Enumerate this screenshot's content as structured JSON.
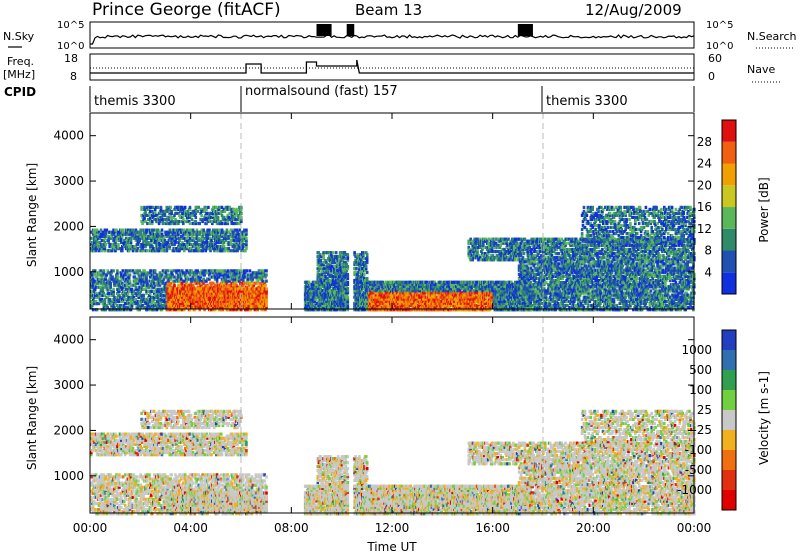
{
  "header": {
    "station": "Prince George (fitACF)",
    "beam": "Beam 13",
    "date": "12/Aug/2009"
  },
  "noise_panel": {
    "left_label": "N.Sky",
    "right_label": "N.Search",
    "tick_top": "10^5",
    "tick_bottom": "10^0"
  },
  "freq_panel": {
    "left_label_1": "Freq.",
    "left_label_2": "[MHz]",
    "left_tick_top": "18",
    "left_tick_bottom": "8",
    "right_label": "Nave",
    "right_tick_top": "60",
    "right_tick_bottom": "0"
  },
  "cpid": {
    "label": "CPID",
    "segments": [
      {
        "text": "themis 3300",
        "start_h": 0,
        "end_h": 6
      },
      {
        "text": "normalsound (fast) 157",
        "start_h": 6,
        "end_h": 18
      },
      {
        "text": "themis 3300",
        "start_h": 18,
        "end_h": 24
      }
    ]
  },
  "power_panel": {
    "ylabel": "Slant Range [km]",
    "yticks": [
      "1000",
      "2000",
      "3000",
      "4000"
    ],
    "colorbar_label": "Power [dB]",
    "colorbar_ticks": [
      "4",
      "8",
      "12",
      "16",
      "20",
      "24",
      "28"
    ],
    "colors": [
      "#1030e0",
      "#2050b0",
      "#2f8a6a",
      "#5ab85a",
      "#c8c820",
      "#f0a000",
      "#f06010",
      "#e01010"
    ]
  },
  "velocity_panel": {
    "ylabel": "Slant Range [km]",
    "yticks": [
      "1000",
      "2000",
      "3000",
      "4000"
    ],
    "colorbar_label": "Velocity [m s-1]",
    "colorbar_ticks": [
      "1000",
      "500",
      "100",
      "25",
      "-25",
      "-100",
      "-500",
      "-1000"
    ],
    "colors": [
      "#2040c0",
      "#3070b0",
      "#30a050",
      "#70d040",
      "#c8c8c8",
      "#f0b020",
      "#f07010",
      "#e03010",
      "#e00000"
    ]
  },
  "xaxis": {
    "label": "Time UT",
    "ticks": [
      "00:00",
      "04:00",
      "08:00",
      "12:00",
      "16:00",
      "20:00",
      "00:00"
    ]
  },
  "chart_data": {
    "type": "heatmap",
    "title": "Prince George (fitACF) Beam 13 12/Aug/2009",
    "xlabel": "Time UT",
    "ylabel": "Slant Range [km]",
    "xlim_hours": [
      0,
      24
    ],
    "ylim_km": [
      180,
      4500
    ],
    "scatter_bands": [
      {
        "t0": 0.0,
        "t1": 6.2,
        "r0": 1500,
        "r1": 2000,
        "density": 0.55
      },
      {
        "t0": 2.0,
        "t1": 6.0,
        "r0": 2100,
        "r1": 2500,
        "density": 0.4
      },
      {
        "t0": 0.0,
        "t1": 7.0,
        "r0": 200,
        "r1": 1100,
        "density": 0.45
      },
      {
        "t0": 3.0,
        "t1": 7.0,
        "r0": 250,
        "r1": 700,
        "density": 0.9
      },
      {
        "t0": 8.5,
        "t1": 17.5,
        "r0": 200,
        "r1": 850,
        "density": 0.8
      },
      {
        "t0": 9.0,
        "t1": 11.0,
        "r0": 800,
        "r1": 1500,
        "density": 0.5
      },
      {
        "t0": 15.0,
        "t1": 24.0,
        "r0": 1300,
        "r1": 1800,
        "density": 0.5
      },
      {
        "t0": 17.0,
        "t1": 24.0,
        "r0": 200,
        "r1": 1300,
        "density": 0.55
      },
      {
        "t0": 19.5,
        "t1": 24.0,
        "r0": 1700,
        "r1": 2500,
        "density": 0.35
      }
    ]
  }
}
